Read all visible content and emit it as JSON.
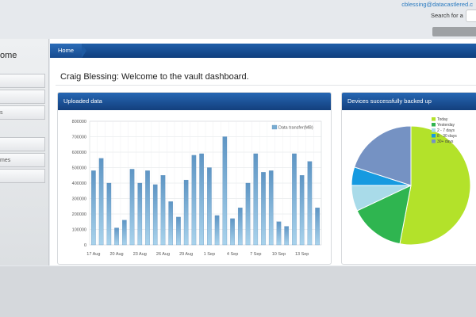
{
  "header": {
    "user_email": "cblessing@datacastlered.c",
    "search_label": "Search for a"
  },
  "sidebar": {
    "title": "ome",
    "items": [
      {
        "label": ""
      },
      {
        "label": ""
      },
      {
        "label": "s"
      },
      {
        "label": ""
      },
      {
        "label": "mes"
      },
      {
        "label": ""
      }
    ]
  },
  "nav": {
    "home_label": "Home"
  },
  "main": {
    "welcome_text": "Craig Blessing: Welcome to the vault dashboard."
  },
  "panels": {
    "uploaded_title": "Uploaded data",
    "devices_title": "Devices successfully backed up"
  },
  "colors": {
    "accent": "#1a56a0",
    "bar": "#79acd2",
    "pie": [
      "#b3e22a",
      "#2fb550",
      "#a9dbe9",
      "#169ae0",
      "#7592c3"
    ]
  },
  "chart_data": [
    {
      "type": "bar",
      "categories": [
        "17 Aug",
        "18 Aug",
        "19 Aug",
        "20 Aug",
        "21 Aug",
        "22 Aug",
        "23 Aug",
        "24 Aug",
        "25 Aug",
        "26 Aug",
        "27 Aug",
        "28 Aug",
        "29 Aug",
        "30 Aug",
        "31 Aug",
        "1 Sep",
        "2 Sep",
        "3 Sep",
        "4 Sep",
        "5 Sep",
        "6 Sep",
        "7 Sep",
        "8 Sep",
        "9 Sep",
        "10 Sep",
        "11 Sep",
        "12 Sep",
        "13 Sep",
        "14 Sep",
        "15 Sep"
      ],
      "tick_labels": [
        "17 Aug",
        "20 Aug",
        "23 Aug",
        "26 Aug",
        "29 Aug",
        "1 Sep",
        "4 Sep",
        "7 Sep",
        "10 Sep",
        "13 Sep"
      ],
      "series": [
        {
          "name": "Data transfer(MB)",
          "values": [
            480000,
            560000,
            400000,
            110000,
            160000,
            490000,
            400000,
            480000,
            390000,
            450000,
            280000,
            180000,
            420000,
            580000,
            590000,
            500000,
            190000,
            700000,
            170000,
            240000,
            400000,
            590000,
            470000,
            480000,
            150000,
            120000,
            590000,
            450000,
            540000,
            240000
          ]
        }
      ],
      "yticks": [
        "0",
        "100000",
        "200000",
        "300000",
        "400000",
        "500000",
        "600000",
        "700000",
        "800000"
      ],
      "ylim": [
        0,
        800000
      ],
      "legend": "top-right",
      "grid": true
    },
    {
      "type": "pie",
      "labels": [
        "Today",
        "Yesterday",
        "2 - 7 days",
        "8 - 30 days",
        "30+ days"
      ],
      "values": [
        53,
        15,
        7,
        5,
        20
      ],
      "legend": "top-right"
    }
  ]
}
